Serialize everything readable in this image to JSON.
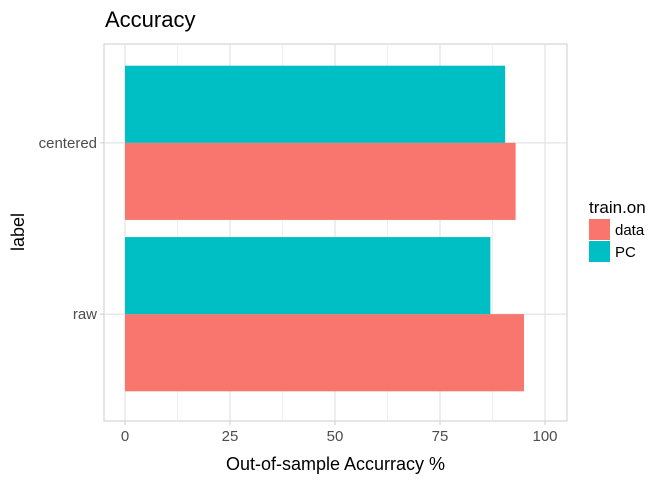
{
  "chart_data": {
    "type": "bar",
    "orientation": "horizontal",
    "title": "Accuracy",
    "xlabel": "Out-of-sample Accurracy %",
    "ylabel": "label",
    "categories": [
      "raw",
      "centered"
    ],
    "series": [
      {
        "name": "data",
        "color": "#F8766D",
        "values": [
          95,
          93
        ]
      },
      {
        "name": "PC",
        "color": "#00BFC4",
        "values": [
          87,
          90.5
        ]
      }
    ],
    "xlim": [
      0,
      100
    ],
    "xticks": [
      0,
      25,
      50,
      75,
      100
    ],
    "grid": true,
    "legend": {
      "title": "train.on",
      "position": "right"
    }
  }
}
